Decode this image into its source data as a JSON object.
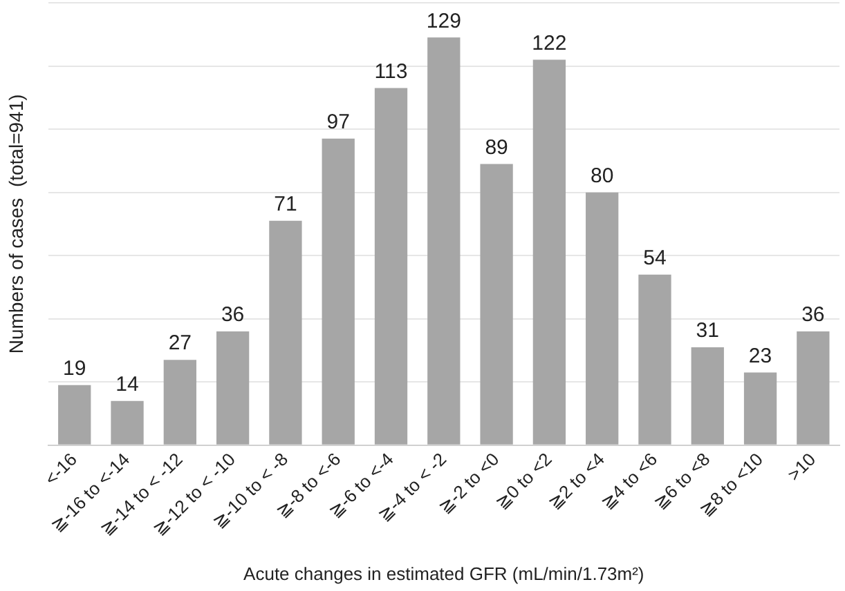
{
  "chart_data": {
    "type": "bar",
    "xlabel": "Acute changes in estimated GFR (mL/min/1.73m²)",
    "ylabel": "Numbers of cases  (total=941)",
    "categories": [
      "<-16",
      "≧-16 to <-14",
      "≧-14 to < -12",
      "≧-12 to < -10",
      "≧-10 to < -8",
      "≧-8 to <-6",
      "≧-6 to <-4",
      "≧-4 to < -2",
      "≧-2 to <0",
      "≧0 to <2",
      "≧2 to <4",
      "≧4 to <6",
      "≧6 to <8",
      "≧8 to <10",
      ">10"
    ],
    "values": [
      19,
      14,
      27,
      36,
      71,
      97,
      113,
      129,
      89,
      122,
      80,
      54,
      31,
      23,
      36
    ],
    "color": "#a6a6a6",
    "data_labels": true,
    "grid": "y",
    "tick_labels": "x"
  }
}
